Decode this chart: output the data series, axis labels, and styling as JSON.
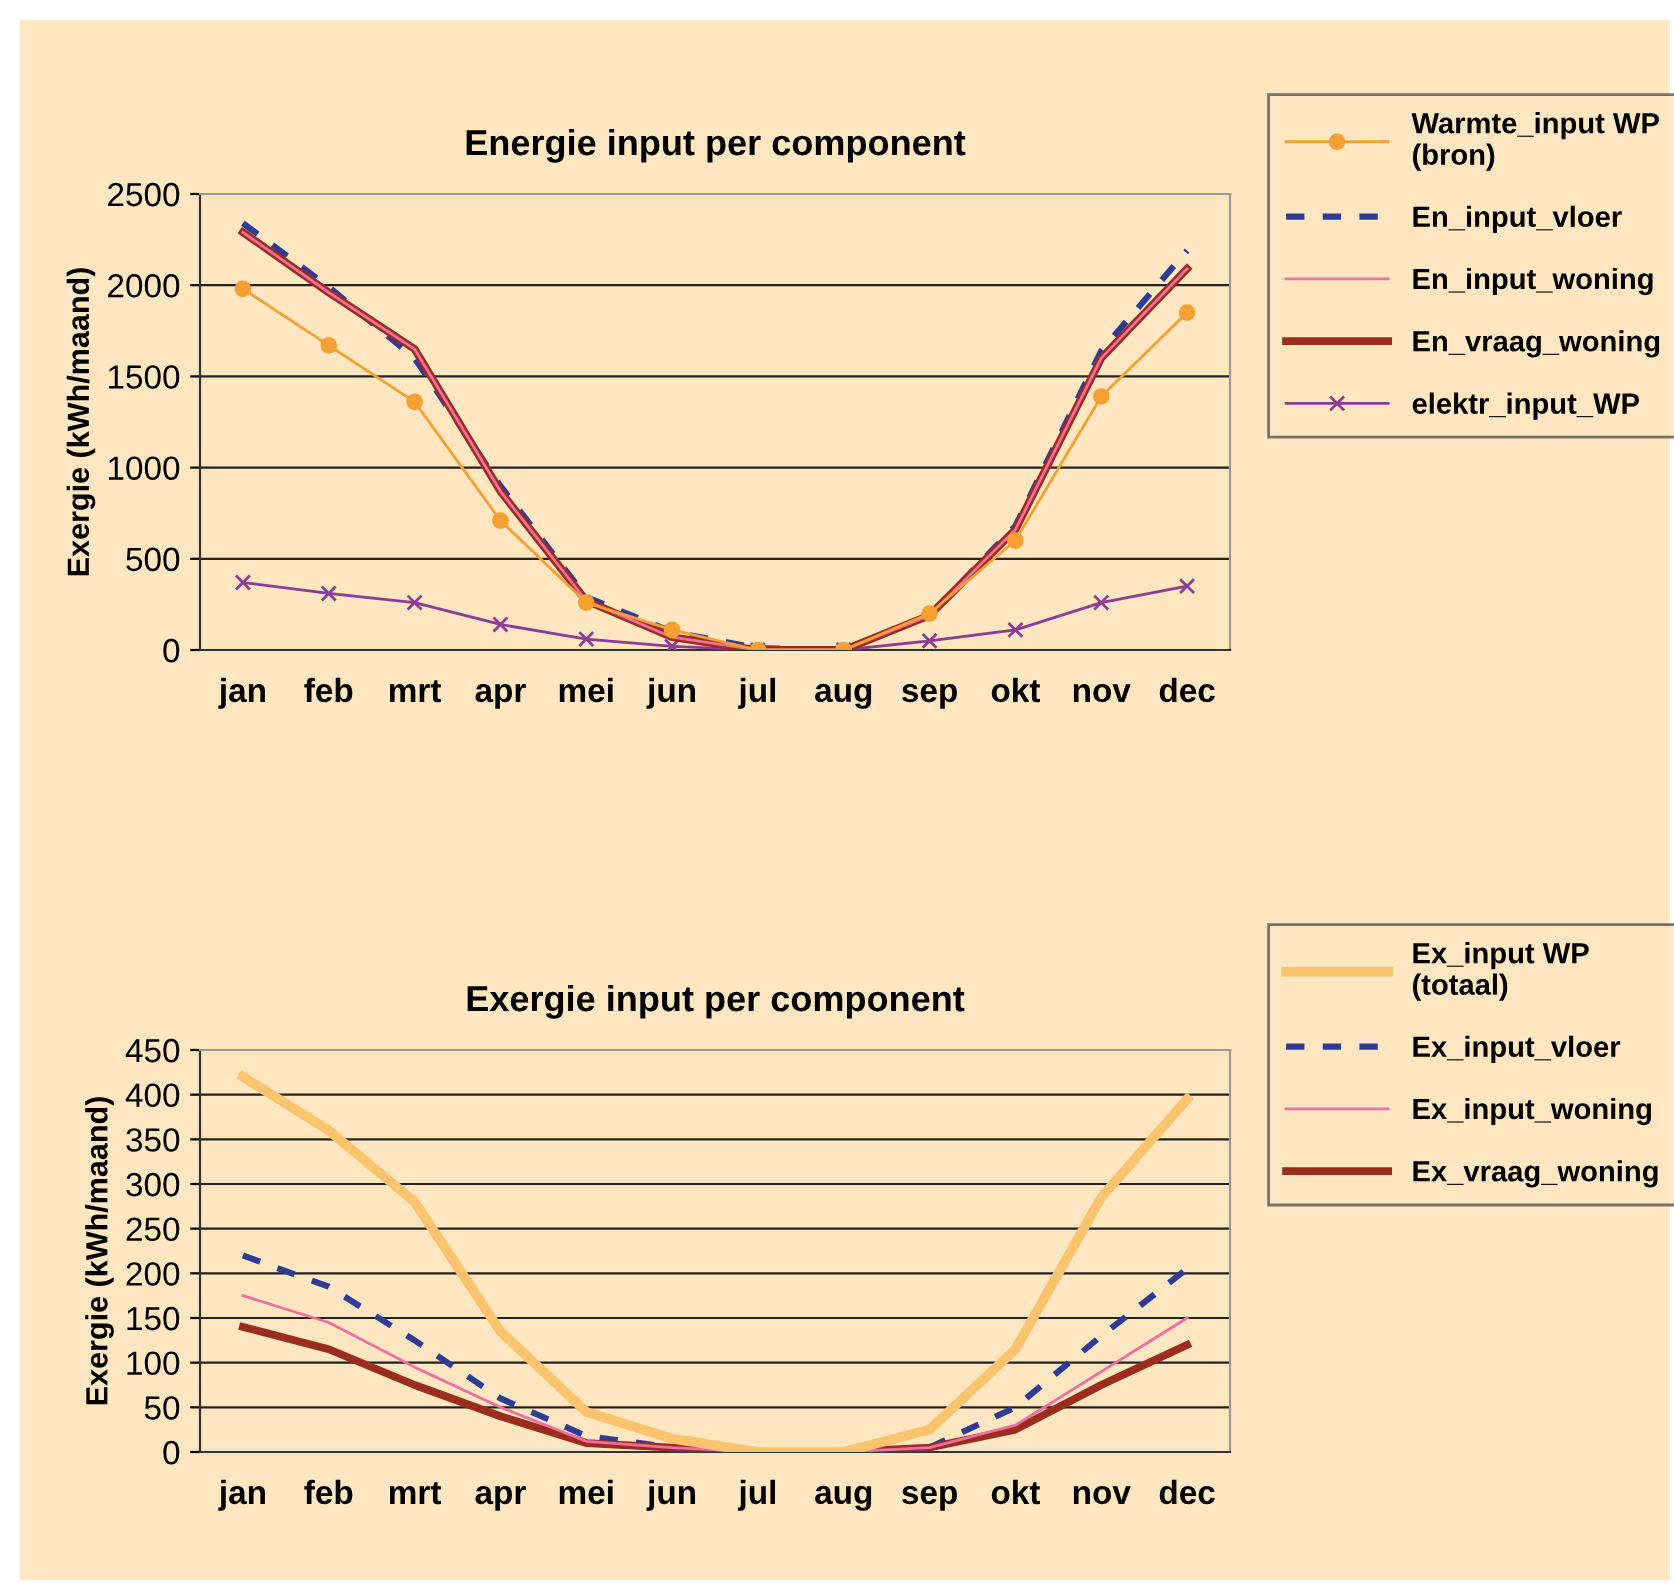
{
  "chart_data": [
    {
      "type": "line",
      "title": "Energie input per component",
      "ylabel": "Exergie (kWh/maand)",
      "categories": [
        "jan",
        "feb",
        "mrt",
        "apr",
        "mei",
        "jun",
        "jul",
        "aug",
        "sep",
        "okt",
        "nov",
        "dec"
      ],
      "ylim": [
        0,
        2500
      ],
      "yticks": [
        0,
        500,
        1000,
        1500,
        2000,
        2500
      ],
      "grid": "y",
      "legend": "top right",
      "series": [
        {
          "name": "Warmte_input WP\n(bron)",
          "color": "#f5a032",
          "marker": "circle",
          "line_style": "solid",
          "values": [
            1980,
            1670,
            1360,
            710,
            260,
            110,
            0,
            0,
            200,
            600,
            1390,
            1850
          ]
        },
        {
          "name": "En_input_vloer",
          "color": "#2e3c96",
          "marker": "none",
          "line_style": "dashed",
          "values": [
            2340,
            1990,
            1600,
            900,
            290,
            100,
            10,
            0,
            190,
            680,
            1640,
            2190
          ]
        },
        {
          "name": "En_input_woning",
          "color": "#f06ea0",
          "marker": "none",
          "line_style": "solid",
          "values": [
            2290,
            1960,
            1650,
            870,
            270,
            70,
            0,
            0,
            190,
            660,
            1600,
            2090
          ]
        },
        {
          "name": "En_vraag_woning",
          "color": "#9b2d1e",
          "marker": "none",
          "line_style": "solid",
          "values": [
            2290,
            1960,
            1650,
            870,
            270,
            70,
            0,
            0,
            190,
            660,
            1600,
            2090
          ]
        },
        {
          "name": "elektr_input_WP",
          "color": "#8c3c96",
          "marker": "cross",
          "line_style": "solid",
          "values": [
            370,
            310,
            260,
            140,
            60,
            20,
            0,
            0,
            50,
            110,
            260,
            350
          ]
        }
      ]
    },
    {
      "type": "line",
      "title": "Exergie input per component",
      "ylabel": "Exergie (kWh/maand)",
      "categories": [
        "jan",
        "feb",
        "mrt",
        "apr",
        "mei",
        "jun",
        "jul",
        "aug",
        "sep",
        "okt",
        "nov",
        "dec"
      ],
      "ylim": [
        0,
        450
      ],
      "yticks": [
        0,
        50,
        100,
        150,
        200,
        250,
        300,
        350,
        400,
        450
      ],
      "grid": "y",
      "legend": "top right",
      "series": [
        {
          "name": "Ex_input WP\n(totaal)",
          "color": "#fac36e",
          "marker": "none",
          "line_style": "solid",
          "values": [
            420,
            360,
            280,
            135,
            45,
            15,
            0,
            0,
            25,
            115,
            285,
            395
          ]
        },
        {
          "name": "Ex_input_vloer",
          "color": "#2e3c96",
          "marker": "none",
          "line_style": "dashed",
          "values": [
            220,
            185,
            125,
            60,
            18,
            5,
            0,
            0,
            5,
            50,
            130,
            205
          ]
        },
        {
          "name": "Ex_input_woning",
          "color": "#f06ea0",
          "marker": "none",
          "line_style": "solid",
          "values": [
            175,
            145,
            95,
            50,
            12,
            5,
            0,
            0,
            5,
            30,
            90,
            150
          ]
        },
        {
          "name": "Ex_vraag_woning",
          "color": "#9b2d1e",
          "marker": "none",
          "line_style": "solid",
          "values": [
            140,
            115,
            75,
            40,
            10,
            5,
            0,
            0,
            5,
            25,
            75,
            120
          ]
        }
      ]
    }
  ]
}
